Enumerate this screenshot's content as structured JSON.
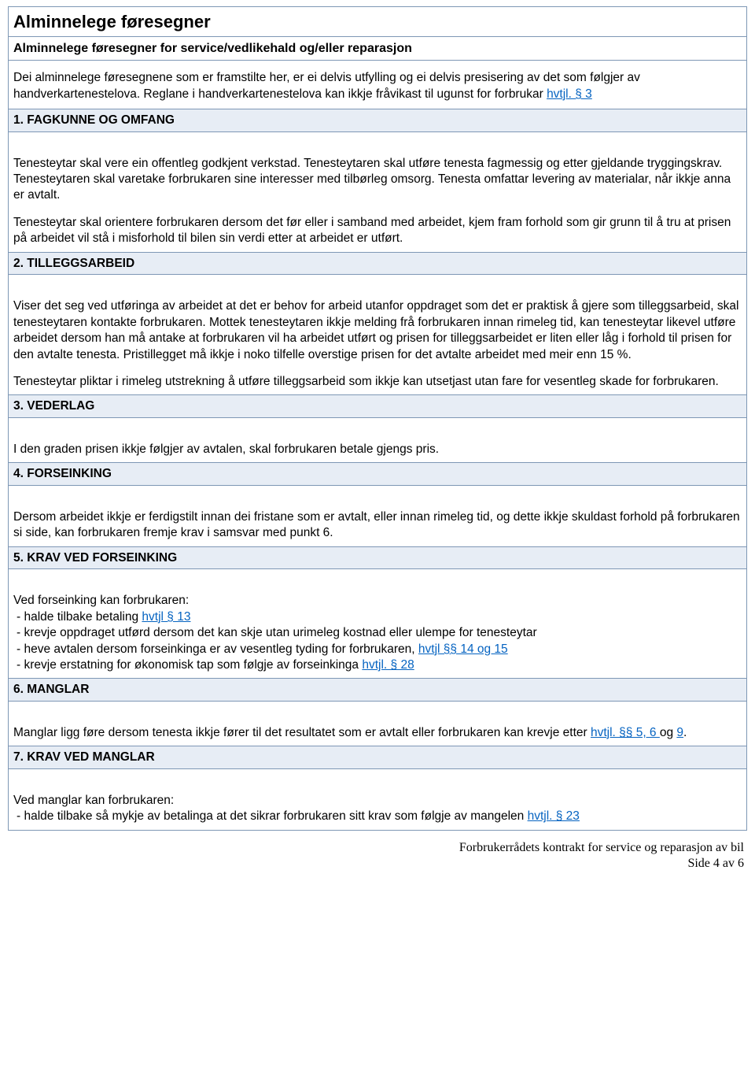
{
  "colors": {
    "border": "#7e97b5",
    "header_bg": "#e7edf5",
    "link": "#0563c1",
    "text": "#000000",
    "page_bg": "#ffffff"
  },
  "title": "Alminnelege føresegner",
  "subtitle": "Alminnelege føresegner for service/vedlikehald og/eller reparasjon",
  "intro_part1": "Dei alminnelege føresegnene som er framstilte her, er ei delvis utfylling og ei delvis presisering av det som følgjer av handverkartenestelova. Reglane i handverkartenestelova kan ikkje fråvikast til ugunst for forbrukar ",
  "intro_link": "hvtjl. § 3",
  "sections": [
    {
      "header": "1. FAGKUNNE OG OMFANG",
      "paragraphs": [
        {
          "text": "Tenesteytar skal vere ein offentleg godkjent verkstad. Tenesteytaren skal utføre tenesta fagmessig og etter gjeldande tryggingskrav. Tenesteytaren skal varetake forbrukaren sine interesser med tilbørleg omsorg. Tenesta omfattar levering av materialar, når ikkje anna er avtalt."
        },
        {
          "text": "Tenesteytar skal orientere forbrukaren dersom det før eller i samband med arbeidet, kjem fram forhold som gir grunn til å tru at prisen på arbeidet vil stå i misforhold til bilen sin verdi etter at arbeidet er utført."
        }
      ]
    },
    {
      "header": "2. TILLEGGSARBEID",
      "paragraphs": [
        {
          "text": "Viser det seg ved utføringa av arbeidet at det er behov for arbeid utanfor oppdraget som det er praktisk å gjere som tilleggsarbeid, skal tenesteytaren kontakte forbrukaren. Mottek tenesteytaren ikkje melding frå forbrukaren innan rimeleg tid, kan tenesteytar likevel utføre arbeidet dersom han må antake at forbrukaren vil ha arbeidet utført og prisen for tilleggsarbeidet er liten eller låg i forhold til prisen for den avtalte tenesta. Pristillegget må ikkje i noko tilfelle overstige prisen for det avtalte arbeidet med meir enn 15 %."
        },
        {
          "text": "Tenesteytar pliktar i rimeleg utstrekning å utføre tilleggsarbeid som ikkje kan utsetjast utan fare for vesentleg skade for forbrukaren."
        }
      ]
    },
    {
      "header": "3. VEDERLAG",
      "paragraphs": [
        {
          "text": "I den graden prisen ikkje følgjer av avtalen, skal forbrukaren betale gjengs pris."
        }
      ]
    },
    {
      "header": "4. FORSEINKING",
      "paragraphs": [
        {
          "text": "Dersom arbeidet ikkje er ferdigstilt innan dei fristane som er avtalt, eller innan rimeleg tid, og dette ikkje skuldast forhold på forbrukaren si side, kan forbrukaren fremje krav i samsvar med punkt 6."
        }
      ]
    },
    {
      "header": "5. KRAV VED FORSEINKING",
      "list_intro": "Ved forseinking kan forbrukaren:",
      "list": [
        {
          "pre": " - halde tilbake betaling ",
          "link": "hvtjl § 13",
          "post": ""
        },
        {
          "pre": " - krevje oppdraget utførd dersom det kan skje utan urimeleg kostnad eller ulempe for tenesteytar",
          "link": "",
          "post": ""
        },
        {
          "pre": " - heve avtalen dersom forseinkinga er av vesentleg tyding for forbrukaren, ",
          "link": "hvtjl  §§ 14 og 15",
          "post": ""
        },
        {
          "pre": " - krevje erstatning for økonomisk tap som følgje av forseinkinga ",
          "link": "hvtjl. § 28",
          "post": ""
        }
      ]
    },
    {
      "header": "6. MANGLAR",
      "mixed": {
        "pre": "Manglar ligg føre dersom tenesta ikkje fører til det resultatet som er avtalt eller forbrukaren kan krevje etter ",
        "link1": "hvtjl. §§ 5, 6 ",
        "mid": "og ",
        "link2": "9",
        "post": "."
      }
    },
    {
      "header": "7. KRAV VED MANGLAR",
      "list_intro": "Ved manglar kan forbrukaren:",
      "list": [
        {
          "pre": " - halde tilbake så mykje av betalinga at det sikrar forbrukaren sitt krav som følgje av mangelen ",
          "link": "hvtjl. § 23",
          "post": ""
        }
      ]
    }
  ],
  "footer_line1": "Forbrukerrådets kontrakt for service og reparasjon av bil",
  "footer_line2": "Side 4 av 6"
}
